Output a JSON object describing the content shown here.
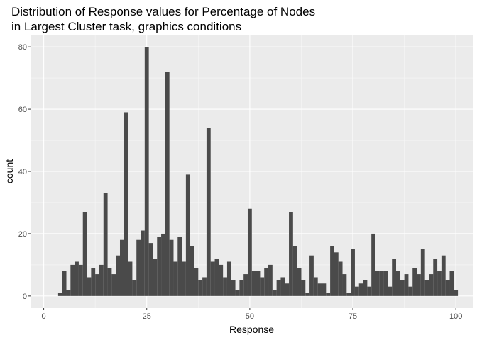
{
  "chart_data": {
    "type": "bar",
    "title": "Distribution of Response values for Percentage of Nodes\nin Largest Cluster task, graphics conditions",
    "xlabel": "Response",
    "ylabel": "count",
    "xlim": [
      3.5,
      100.5
    ],
    "ylim": [
      0,
      80
    ],
    "x_ticks": [
      0,
      25,
      50,
      75,
      100
    ],
    "y_ticks": [
      0,
      20,
      40,
      60,
      80
    ],
    "grid": true,
    "bar_color": "#4a4a4a",
    "panel_background": "#ebebeb",
    "x": [
      4,
      5,
      6,
      7,
      8,
      9,
      10,
      11,
      12,
      13,
      14,
      15,
      16,
      17,
      18,
      19,
      20,
      21,
      22,
      23,
      24,
      25,
      26,
      27,
      28,
      29,
      30,
      31,
      32,
      33,
      34,
      35,
      36,
      37,
      38,
      39,
      40,
      41,
      42,
      43,
      44,
      45,
      46,
      47,
      48,
      49,
      50,
      51,
      52,
      53,
      54,
      55,
      56,
      57,
      58,
      59,
      60,
      61,
      62,
      63,
      64,
      65,
      66,
      67,
      68,
      69,
      70,
      71,
      72,
      73,
      74,
      75,
      76,
      77,
      78,
      79,
      80,
      81,
      82,
      83,
      84,
      85,
      86,
      87,
      88,
      89,
      90,
      91,
      92,
      93,
      94,
      95,
      96,
      97,
      98,
      99,
      100
    ],
    "values": [
      1,
      8,
      2,
      10,
      11,
      10,
      27,
      6,
      9,
      7,
      10,
      33,
      9,
      7,
      13,
      18,
      59,
      11,
      5,
      18,
      21,
      80,
      17,
      12,
      19,
      20,
      72,
      18,
      11,
      19,
      11,
      39,
      16,
      9,
      5,
      6,
      54,
      11,
      12,
      10,
      6,
      11,
      5,
      2,
      5,
      7,
      28,
      8,
      8,
      6,
      9,
      10,
      2,
      5,
      6,
      4,
      27,
      16,
      9,
      5,
      1,
      13,
      6,
      4,
      4,
      1,
      16,
      14,
      11,
      7,
      1,
      15,
      3,
      4,
      5,
      3,
      20,
      8,
      8,
      8,
      3,
      12,
      8,
      5,
      7,
      3,
      9,
      7,
      15,
      5,
      7,
      12,
      8,
      13,
      5,
      8,
      2
    ]
  }
}
